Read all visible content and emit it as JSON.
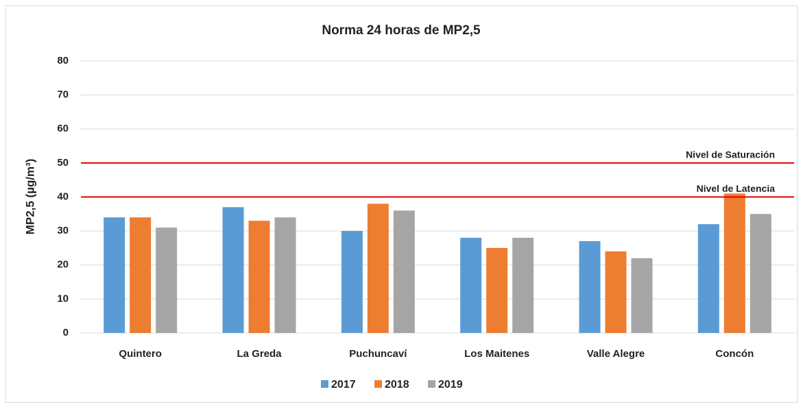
{
  "chart_data": {
    "type": "bar",
    "title": "Norma  24 horas de MP2,5",
    "y_label": "MP2,5 (µg/m³)",
    "categories": [
      "Quintero",
      "La Greda",
      "Puchuncaví",
      "Los Maitenes",
      "Valle Alegre",
      "Concón"
    ],
    "series": [
      {
        "name": "2017",
        "color": "#5b9bd5",
        "values": [
          34,
          37,
          30,
          28,
          27,
          32
        ]
      },
      {
        "name": "2018",
        "color": "#ed7d31",
        "values": [
          34,
          33,
          38,
          25,
          24,
          41
        ]
      },
      {
        "name": "2019",
        "color": "#a5a5a5",
        "values": [
          31,
          34,
          36,
          28,
          22,
          35
        ]
      }
    ],
    "reference_lines": [
      {
        "label": "Nivel de Saturación",
        "value": 50,
        "color": "#e00000"
      },
      {
        "label": "Nivel de Latencia",
        "value": 40,
        "color": "#e00000"
      }
    ],
    "ylim": [
      0,
      80
    ],
    "yticks": [
      0,
      10,
      20,
      30,
      40,
      50,
      60,
      70,
      80
    ],
    "grid": true,
    "legend": "bottom"
  }
}
